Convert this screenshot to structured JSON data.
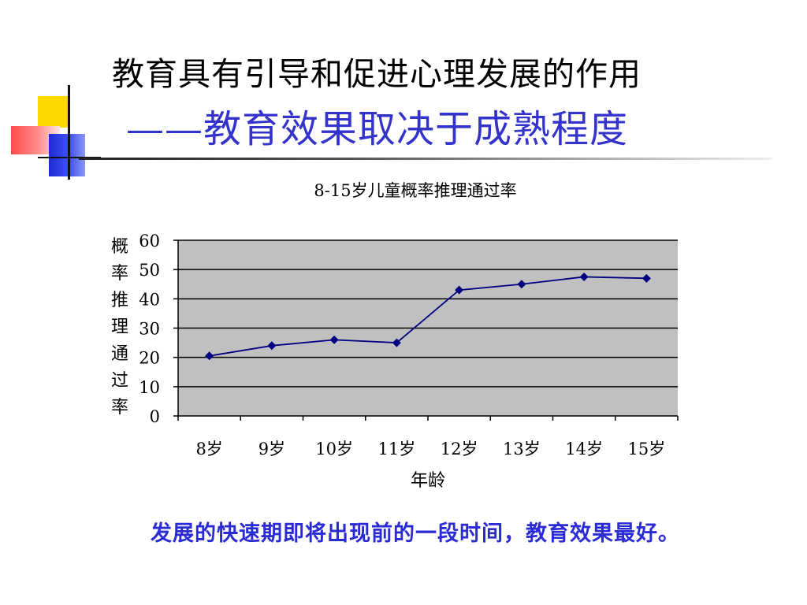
{
  "slide": {
    "title_line1": "教育具有引导和促进心理发展的作用",
    "title_line2": "——教育效果取决于成熟程度",
    "footer_text": "发展的快速期即将出现前的一段时间，教育效果最好。"
  },
  "colors": {
    "title2": "#3333cc",
    "footer": "#2b2bd6",
    "plot_bg": "#c0c0c0",
    "series": "#000080"
  },
  "chart_data": {
    "type": "line",
    "title": "8-15岁儿童概率推理通过率",
    "xlabel": "年龄",
    "ylabel": "概率推理通过率",
    "categories": [
      "8岁",
      "9岁",
      "10岁",
      "11岁",
      "12岁",
      "13岁",
      "14岁",
      "15岁"
    ],
    "values": [
      20.5,
      24,
      26,
      25,
      43,
      45,
      47.5,
      47
    ],
    "ylim": [
      0,
      60
    ],
    "yticks": [
      0,
      10,
      20,
      30,
      40,
      50,
      60
    ],
    "grid": true,
    "legend": "none"
  }
}
